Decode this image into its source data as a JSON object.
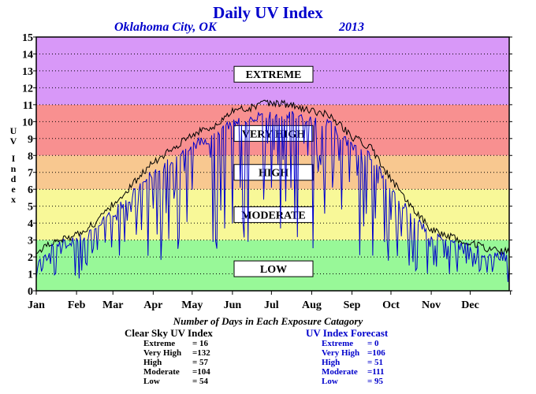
{
  "header": {
    "title": "Daily UV Index",
    "location": "Oklahoma City, OK",
    "year": "2013"
  },
  "chart_data": {
    "type": "line",
    "title": "Daily UV Index",
    "ylabel": "UV Index",
    "xlabel": "",
    "ylim": [
      0,
      15
    ],
    "yticks": [
      "0",
      "1",
      "2",
      "3",
      "4",
      "5",
      "6",
      "7",
      "8",
      "9",
      "10",
      "11",
      "12",
      "13",
      "14",
      "15"
    ],
    "months": [
      "Jan",
      "Feb",
      "Mar",
      "Apr",
      "May",
      "Jun",
      "Jul",
      "Aug",
      "Sep",
      "Oct",
      "Nov",
      "Dec"
    ],
    "grid": "dotted horizontal lines at each integer",
    "bands": [
      {
        "label": "LOW",
        "from": 0,
        "to": 3,
        "color": "#98f898"
      },
      {
        "label": "MODERATE",
        "from": 3,
        "to": 6,
        "color": "#f8f898"
      },
      {
        "label": "HIGH",
        "from": 6,
        "to": 8,
        "color": "#f8c890"
      },
      {
        "label": "VERY HIGH",
        "from": 8,
        "to": 11,
        "color": "#f89090"
      },
      {
        "label": "EXTREME",
        "from": 11,
        "to": 15,
        "color": "#d898f8"
      }
    ],
    "series": [
      {
        "name": "Clear Sky UV Index",
        "color": "#000000",
        "day": [
          1,
          15,
          32,
          46,
          60,
          74,
          91,
          105,
          121,
          135,
          152,
          166,
          172,
          182,
          196,
          213,
          227,
          244,
          258,
          274,
          288,
          305,
          319,
          335,
          349,
          365
        ],
        "values": [
          2.2,
          2.9,
          3.3,
          4.0,
          5.1,
          6.2,
          7.6,
          8.3,
          9.3,
          9.6,
          10.6,
          10.8,
          11.0,
          11.1,
          11.0,
          10.6,
          10.4,
          9.1,
          8.5,
          6.6,
          5.1,
          3.6,
          3.2,
          2.8,
          2.5,
          2.3
        ]
      },
      {
        "name": "UV Index Forecast",
        "color": "#0000cc",
        "day": [
          1,
          15,
          32,
          46,
          60,
          74,
          91,
          105,
          121,
          135,
          152,
          166,
          172,
          182,
          196,
          213,
          227,
          244,
          258,
          274,
          288,
          305,
          319,
          335,
          349,
          365
        ],
        "values": [
          2.0,
          2.6,
          3.0,
          3.6,
          4.6,
          5.6,
          7.0,
          7.7,
          8.6,
          9.0,
          9.9,
          10.2,
          10.3,
          10.4,
          10.4,
          10.0,
          9.8,
          8.5,
          7.9,
          6.1,
          4.6,
          3.2,
          2.9,
          2.5,
          2.2,
          2.0
        ]
      }
    ]
  },
  "summary": {
    "title": "Number of Days in Each Exposure Catagory",
    "clear_sky": {
      "heading": "Clear Sky UV Index",
      "rows": [
        {
          "label": "Extreme",
          "value": "= 16"
        },
        {
          "label": "Very High",
          "value": "=132"
        },
        {
          "label": "High",
          "value": "= 57"
        },
        {
          "label": "Moderate",
          "value": "=104"
        },
        {
          "label": "Low",
          "value": "= 54"
        }
      ]
    },
    "forecast": {
      "heading": "UV Index Forecast",
      "rows": [
        {
          "label": "Extreme",
          "value": "= 0"
        },
        {
          "label": "Very High",
          "value": "=106"
        },
        {
          "label": "High",
          "value": "= 51"
        },
        {
          "label": "Moderate",
          "value": "=111"
        },
        {
          "label": "Low",
          "value": "= 95"
        }
      ]
    }
  }
}
